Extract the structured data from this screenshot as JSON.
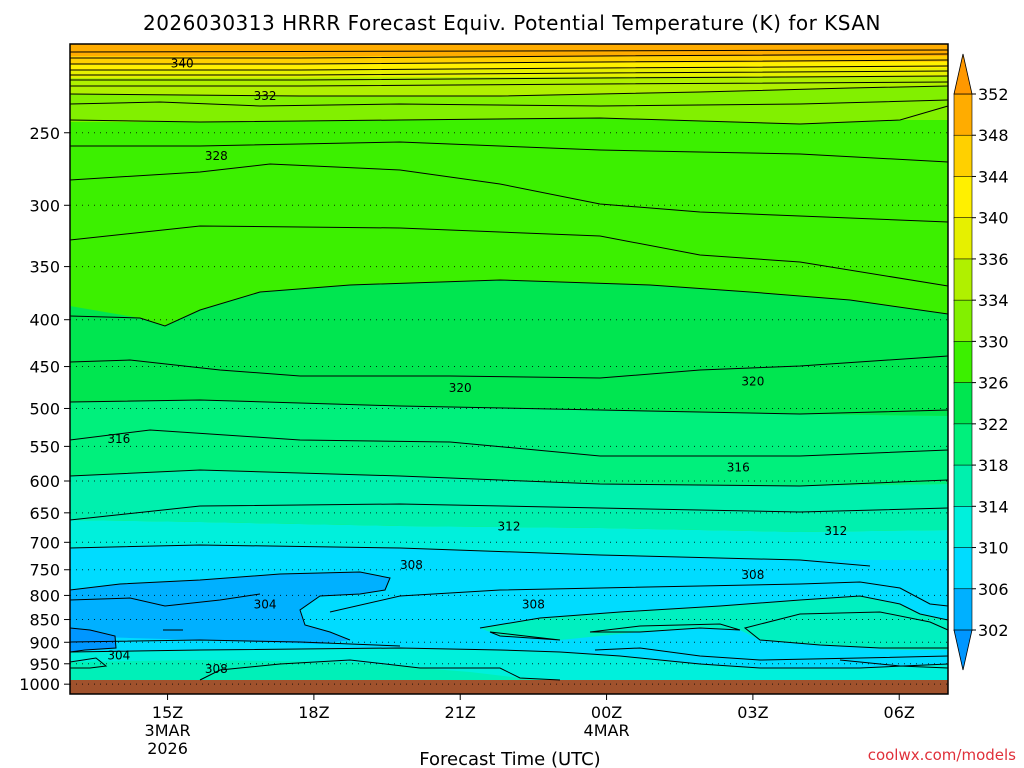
{
  "chart_data": {
    "type": "heatmap",
    "title": "2026030313 HRRR Forecast Equiv. Potential Temperature (K) for KSAN",
    "xlabel": "Forecast Time (UTC)",
    "ylabel": "",
    "x_ticks": [
      {
        "label": "15Z",
        "sub": [
          "3MAR",
          "2026"
        ],
        "hour": 15
      },
      {
        "label": "18Z",
        "sub": [],
        "hour": 18
      },
      {
        "label": "21Z",
        "sub": [],
        "hour": 21
      },
      {
        "label": "00Z",
        "sub": [
          "4MAR"
        ],
        "hour": 24
      },
      {
        "label": "03Z",
        "sub": [],
        "hour": 27
      },
      {
        "label": "06Z",
        "sub": [],
        "hour": 30
      }
    ],
    "xlim": [
      13,
      31
    ],
    "y_ticks": [
      250,
      300,
      350,
      400,
      450,
      500,
      550,
      600,
      650,
      700,
      750,
      800,
      850,
      900,
      950,
      1000
    ],
    "ylim": [
      200,
      1025
    ],
    "y_scale": "log",
    "grid": "dotted horizontal at each pressure tick",
    "colorbar": {
      "ticks": [
        352,
        348,
        344,
        340,
        336,
        334,
        330,
        326,
        322,
        318,
        314,
        310,
        306,
        302
      ],
      "bins": [
        {
          "from": 348,
          "to": 352,
          "color": "#ffac00"
        },
        {
          "from": 344,
          "to": 348,
          "color": "#ffd000"
        },
        {
          "from": 340,
          "to": 344,
          "color": "#fff000"
        },
        {
          "from": 336,
          "to": 340,
          "color": "#e6f000"
        },
        {
          "from": 334,
          "to": 336,
          "color": "#b0f000"
        },
        {
          "from": 330,
          "to": 334,
          "color": "#82f000"
        },
        {
          "from": 326,
          "to": 330,
          "color": "#3cf000"
        },
        {
          "from": 322,
          "to": 326,
          "color": "#00e650"
        },
        {
          "from": 318,
          "to": 322,
          "color": "#00f07c"
        },
        {
          "from": 314,
          "to": 318,
          "color": "#00f0ae"
        },
        {
          "from": 310,
          "to": 314,
          "color": "#00f0dc"
        },
        {
          "from": 306,
          "to": 310,
          "color": "#00dcff"
        },
        {
          "from": 302,
          "to": 306,
          "color": "#00b0ff"
        }
      ],
      "low_color": "#0096ff",
      "high_color": "#ff9800"
    },
    "ground_color": "#a0522d",
    "contour_labels": [
      {
        "text": "340",
        "hour": 15.3,
        "p": 210
      },
      {
        "text": "332",
        "hour": 17,
        "p": 228
      },
      {
        "text": "328",
        "hour": 16,
        "p": 265
      },
      {
        "text": "320",
        "hour": 21,
        "p": 475
      },
      {
        "text": "320",
        "hour": 27,
        "p": 467
      },
      {
        "text": "316",
        "hour": 14,
        "p": 540
      },
      {
        "text": "316",
        "hour": 26.7,
        "p": 580
      },
      {
        "text": "312",
        "hour": 22,
        "p": 673
      },
      {
        "text": "312",
        "hour": 28.7,
        "p": 680
      },
      {
        "text": "308",
        "hour": 20,
        "p": 741
      },
      {
        "text": "308",
        "hour": 27,
        "p": 760
      },
      {
        "text": "308",
        "hour": 22.5,
        "p": 818
      },
      {
        "text": "304",
        "hour": 17,
        "p": 818
      },
      {
        "text": "304",
        "hour": 14,
        "p": 930
      },
      {
        "text": "308",
        "hour": 16,
        "p": 963
      }
    ]
  },
  "credit": "coolwx.com/models"
}
